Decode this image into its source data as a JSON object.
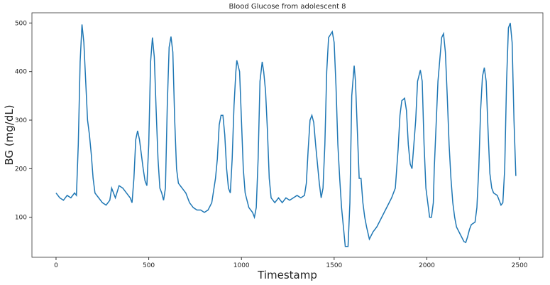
{
  "chart_data": {
    "type": "line",
    "title": "Blood Glucose from adolescent 8",
    "x_label": "Timestamp",
    "y_label": "BG (mg/dL)",
    "xlim": [
      -130,
      2626
    ],
    "ylim": [
      17.6,
      521
    ],
    "xticks": [
      0,
      500,
      1000,
      1500,
      2000,
      2500
    ],
    "yticks": [
      100,
      200,
      300,
      400,
      500
    ],
    "grid": false,
    "series": [
      {
        "name": "BG",
        "color": "#1f77b4",
        "x": [
          0,
          20,
          40,
          60,
          80,
          100,
          110,
          120,
          130,
          140,
          150,
          160,
          170,
          180,
          190,
          200,
          210,
          230,
          250,
          270,
          290,
          300,
          320,
          340,
          360,
          380,
          400,
          410,
          420,
          430,
          440,
          450,
          460,
          470,
          480,
          490,
          500,
          510,
          520,
          530,
          540,
          550,
          560,
          570,
          580,
          590,
          600,
          610,
          620,
          630,
          640,
          650,
          660,
          680,
          700,
          720,
          740,
          760,
          780,
          800,
          820,
          840,
          860,
          870,
          880,
          890,
          900,
          910,
          920,
          930,
          940,
          950,
          960,
          970,
          975,
          990,
          1000,
          1010,
          1020,
          1040,
          1060,
          1070,
          1080,
          1090,
          1100,
          1112,
          1120,
          1130,
          1140,
          1150,
          1160,
          1180,
          1200,
          1220,
          1240,
          1260,
          1280,
          1300,
          1320,
          1340,
          1350,
          1360,
          1370,
          1380,
          1390,
          1400,
          1410,
          1420,
          1430,
          1440,
          1450,
          1460,
          1470,
          1490,
          1500,
          1510,
          1520,
          1530,
          1540,
          1550,
          1560,
          1575,
          1585,
          1595,
          1608,
          1615,
          1625,
          1635,
          1645,
          1655,
          1665,
          1675,
          1690,
          1710,
          1730,
          1750,
          1770,
          1790,
          1810,
          1830,
          1845,
          1855,
          1865,
          1880,
          1890,
          1900,
          1910,
          1920,
          1930,
          1940,
          1950,
          1965,
          1975,
          1985,
          1995,
          2005,
          2015,
          2025,
          2035,
          2040,
          2060,
          2080,
          2090,
          2100,
          2110,
          2120,
          2130,
          2140,
          2150,
          2160,
          2180,
          2200,
          2210,
          2220,
          2230,
          2240,
          2260,
          2270,
          2280,
          2290,
          2300,
          2310,
          2320,
          2330,
          2340,
          2350,
          2360,
          2380,
          2400,
          2410,
          2420,
          2430,
          2440,
          2450,
          2460,
          2470,
          2480
        ],
        "values": [
          150,
          140,
          135,
          145,
          140,
          150,
          145,
          250,
          420,
          497,
          460,
          380,
          300,
          270,
          230,
          180,
          150,
          140,
          130,
          125,
          135,
          160,
          140,
          165,
          160,
          150,
          140,
          130,
          180,
          260,
          278,
          260,
          230,
          200,
          175,
          165,
          250,
          420,
          470,
          430,
          320,
          220,
          160,
          150,
          135,
          160,
          330,
          450,
          472,
          440,
          300,
          200,
          170,
          160,
          150,
          130,
          120,
          115,
          115,
          110,
          115,
          130,
          180,
          220,
          290,
          310,
          310,
          270,
          200,
          160,
          150,
          220,
          330,
          400,
          423,
          400,
          300,
          200,
          150,
          120,
          110,
          100,
          120,
          220,
          380,
          420,
          400,
          360,
          280,
          180,
          140,
          130,
          140,
          130,
          140,
          135,
          140,
          145,
          140,
          145,
          170,
          240,
          300,
          310,
          295,
          250,
          210,
          170,
          140,
          160,
          250,
          400,
          470,
          482,
          460,
          370,
          250,
          180,
          120,
          80,
          40,
          40,
          130,
          350,
          412,
          380,
          280,
          180,
          180,
          130,
          100,
          80,
          55,
          70,
          80,
          95,
          110,
          125,
          140,
          160,
          240,
          310,
          340,
          345,
          320,
          250,
          210,
          200,
          250,
          300,
          380,
          403,
          380,
          250,
          160,
          130,
          100,
          100,
          130,
          200,
          380,
          470,
          478,
          440,
          350,
          250,
          180,
          130,
          100,
          80,
          65,
          50,
          48,
          60,
          75,
          85,
          90,
          120,
          200,
          320,
          390,
          408,
          380,
          280,
          190,
          160,
          150,
          145,
          125,
          130,
          200,
          380,
          490,
          500,
          460,
          300,
          185
        ]
      }
    ]
  }
}
